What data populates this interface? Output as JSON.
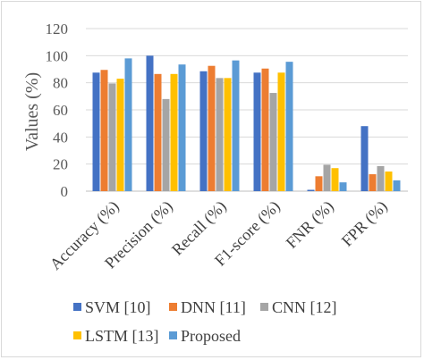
{
  "chart_data": {
    "type": "bar",
    "ylabel": "Values (%)",
    "xlabel": "",
    "title": "",
    "ylim": [
      0,
      120
    ],
    "yticks": [
      0,
      20,
      40,
      60,
      80,
      100,
      120
    ],
    "grid": true,
    "legend_position": "bottom",
    "categories": [
      "Accuracy (%)",
      "Precision (%)",
      "Recall (%)",
      "F1-score (%)",
      "FNR (%)",
      "FPR (%)"
    ],
    "series": [
      {
        "name": "SVM [10]",
        "color": "#4472C4",
        "values": [
          87.5,
          100,
          88.5,
          87.5,
          1,
          48
        ]
      },
      {
        "name": "DNN [11]",
        "color": "#ED7D31",
        "values": [
          89.5,
          86.5,
          92.5,
          90.5,
          11,
          12.5
        ]
      },
      {
        "name": "CNN [12]",
        "color": "#A5A5A5",
        "values": [
          79.5,
          68,
          83.5,
          72.5,
          19.5,
          18.5
        ]
      },
      {
        "name": "LSTM [13]",
        "color": "#FFC000",
        "values": [
          83,
          86.5,
          83.5,
          87.5,
          17,
          14.5
        ]
      },
      {
        "name": "Proposed",
        "color": "#5B9BD5",
        "values": [
          98,
          93.5,
          96.5,
          95.5,
          6.5,
          8
        ]
      }
    ]
  }
}
